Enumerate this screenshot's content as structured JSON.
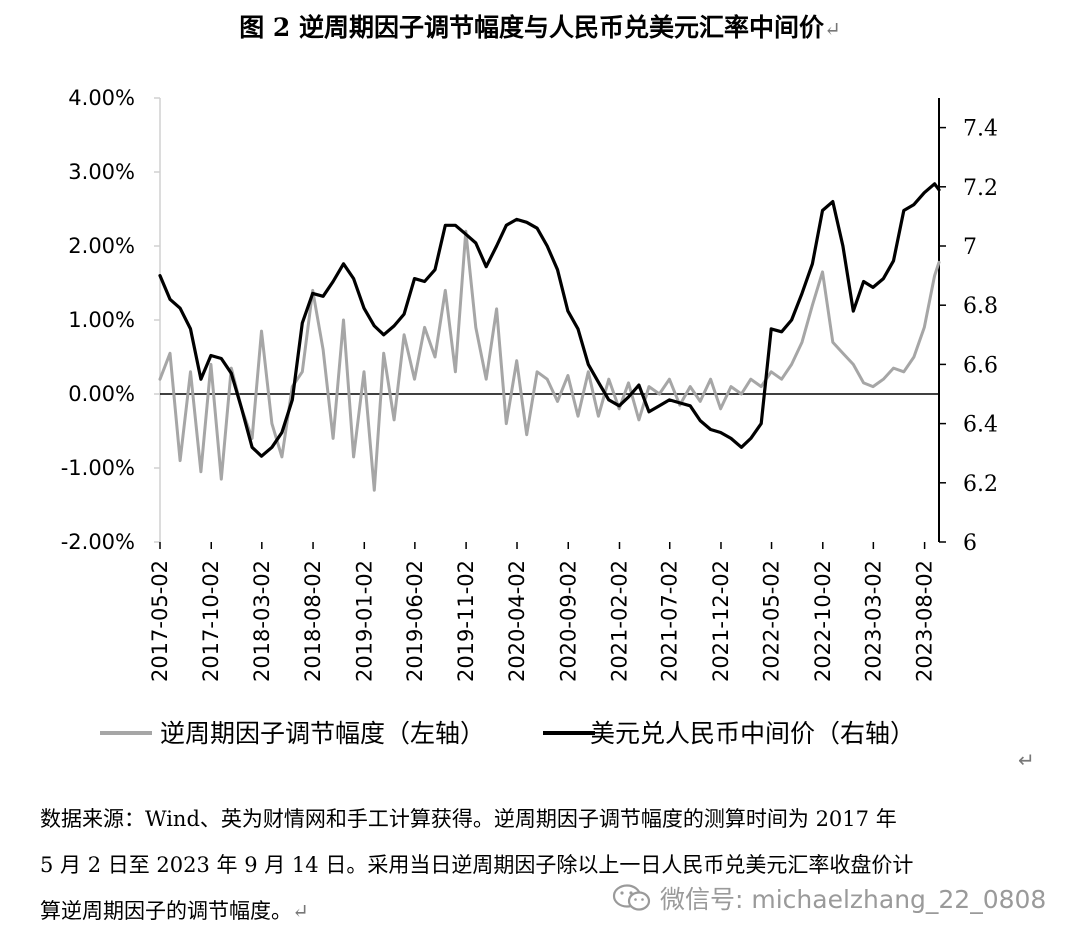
{
  "title": "图 2  逆周期因子调节幅度与人民币兑美元汇率中间价",
  "notes": [
    "数据来源：Wind、英为财情网和手工计算获得。逆周期因子调节幅度的测算时间为 2017 年",
    "5 月 2 日至 2023 年 9 月 14 日。采用当日逆周期因子除以上一日人民币兑美元汇率收盘价计",
    "算逆周期因子的调节幅度。"
  ],
  "watermark": "微信号: michaelzhang_22_0808",
  "chart_data": {
    "type": "line",
    "title": "图 2  逆周期因子调节幅度与人民币兑美元汇率中间价",
    "y_left": {
      "ticks": [
        "4.00%",
        "3.00%",
        "2.00%",
        "1.00%",
        "0.00%",
        "-1.00%",
        "-2.00%"
      ],
      "range": [
        -2.0,
        4.0
      ],
      "unit": "%"
    },
    "y_right": {
      "ticks": [
        "7.4",
        "7.2",
        "7",
        "6.8",
        "6.6",
        "6.4",
        "6.2",
        "6"
      ],
      "range": [
        6.0,
        7.5
      ]
    },
    "x_ticks": [
      "2017-05-02",
      "2017-10-02",
      "2018-03-02",
      "2018-08-02",
      "2019-01-02",
      "2019-06-02",
      "2019-11-02",
      "2020-04-02",
      "2020-09-02",
      "2021-02-02",
      "2021-07-02",
      "2021-12-02",
      "2022-05-02",
      "2022-10-02",
      "2023-03-02",
      "2023-08-02"
    ],
    "x_range": [
      "2017-05-02",
      "2023-09-14"
    ],
    "series": [
      {
        "name": "逆周期因子调节幅度（左轴）",
        "axis": "left",
        "color": "#a6a6a6",
        "x": [
          "2017-05-02",
          "2017-06-01",
          "2017-07-01",
          "2017-08-01",
          "2017-09-01",
          "2017-10-01",
          "2017-11-01",
          "2017-12-01",
          "2018-01-01",
          "2018-02-01",
          "2018-03-01",
          "2018-04-01",
          "2018-05-01",
          "2018-06-01",
          "2018-07-01",
          "2018-08-01",
          "2018-09-01",
          "2018-10-01",
          "2018-11-01",
          "2018-12-01",
          "2019-01-01",
          "2019-02-01",
          "2019-03-01",
          "2019-04-01",
          "2019-05-01",
          "2019-06-01",
          "2019-07-01",
          "2019-08-01",
          "2019-09-01",
          "2019-10-01",
          "2019-11-01",
          "2019-12-01",
          "2020-01-01",
          "2020-02-01",
          "2020-03-01",
          "2020-04-01",
          "2020-05-01",
          "2020-06-01",
          "2020-07-01",
          "2020-08-01",
          "2020-09-01",
          "2020-10-01",
          "2020-11-01",
          "2020-12-01",
          "2021-01-01",
          "2021-02-01",
          "2021-03-01",
          "2021-04-01",
          "2021-05-01",
          "2021-06-01",
          "2021-07-01",
          "2021-08-01",
          "2021-09-01",
          "2021-10-01",
          "2021-11-01",
          "2021-12-01",
          "2022-01-01",
          "2022-02-01",
          "2022-03-01",
          "2022-04-01",
          "2022-05-01",
          "2022-06-01",
          "2022-07-01",
          "2022-08-01",
          "2022-09-01",
          "2022-10-01",
          "2022-11-01",
          "2022-12-01",
          "2023-01-01",
          "2023-02-01",
          "2023-03-01",
          "2023-04-01",
          "2023-05-01",
          "2023-06-01",
          "2023-07-01",
          "2023-08-01",
          "2023-09-01",
          "2023-09-14"
        ],
        "values": [
          0.2,
          0.55,
          -0.9,
          0.3,
          -1.05,
          0.4,
          -1.15,
          0.35,
          -0.2,
          -0.6,
          0.85,
          -0.4,
          -0.85,
          0.1,
          0.3,
          1.4,
          0.6,
          -0.6,
          1.0,
          -0.85,
          0.3,
          -1.3,
          0.55,
          -0.35,
          0.8,
          0.2,
          0.9,
          0.5,
          1.4,
          0.3,
          2.2,
          0.9,
          0.2,
          1.15,
          -0.4,
          0.45,
          -0.55,
          0.3,
          0.2,
          -0.1,
          0.25,
          -0.3,
          0.3,
          -0.3,
          0.2,
          -0.2,
          0.15,
          -0.35,
          0.1,
          0.0,
          0.2,
          -0.15,
          0.1,
          -0.1,
          0.2,
          -0.2,
          0.1,
          0.0,
          0.2,
          0.1,
          0.3,
          0.2,
          0.4,
          0.7,
          1.2,
          1.65,
          0.7,
          0.55,
          0.4,
          0.15,
          0.1,
          0.2,
          0.35,
          0.3,
          0.5,
          0.9,
          1.6,
          1.78
        ]
      },
      {
        "name": "美元兑人民币中间价（右轴）",
        "axis": "right",
        "color": "#000000",
        "x": [
          "2017-05-02",
          "2017-06-01",
          "2017-07-01",
          "2017-08-01",
          "2017-09-01",
          "2017-10-01",
          "2017-11-01",
          "2017-12-01",
          "2018-01-01",
          "2018-02-01",
          "2018-03-01",
          "2018-04-01",
          "2018-05-01",
          "2018-06-01",
          "2018-07-01",
          "2018-08-01",
          "2018-09-01",
          "2018-10-01",
          "2018-11-01",
          "2018-12-01",
          "2019-01-01",
          "2019-02-01",
          "2019-03-01",
          "2019-04-01",
          "2019-05-01",
          "2019-06-01",
          "2019-07-01",
          "2019-08-01",
          "2019-09-01",
          "2019-10-01",
          "2019-11-01",
          "2019-12-01",
          "2020-01-01",
          "2020-02-01",
          "2020-03-01",
          "2020-04-01",
          "2020-05-01",
          "2020-06-01",
          "2020-07-01",
          "2020-08-01",
          "2020-09-01",
          "2020-10-01",
          "2020-11-01",
          "2020-12-01",
          "2021-01-01",
          "2021-02-01",
          "2021-03-01",
          "2021-04-01",
          "2021-05-01",
          "2021-06-01",
          "2021-07-01",
          "2021-08-01",
          "2021-09-01",
          "2021-10-01",
          "2021-11-01",
          "2021-12-01",
          "2022-01-01",
          "2022-02-01",
          "2022-03-01",
          "2022-04-01",
          "2022-05-01",
          "2022-06-01",
          "2022-07-01",
          "2022-08-01",
          "2022-09-01",
          "2022-10-01",
          "2022-11-01",
          "2022-12-01",
          "2023-01-01",
          "2023-02-01",
          "2023-03-01",
          "2023-04-01",
          "2023-05-01",
          "2023-06-01",
          "2023-07-01",
          "2023-08-01",
          "2023-09-01",
          "2023-09-14"
        ],
        "values": [
          6.9,
          6.82,
          6.79,
          6.72,
          6.55,
          6.63,
          6.62,
          6.57,
          6.45,
          6.32,
          6.29,
          6.32,
          6.37,
          6.48,
          6.74,
          6.84,
          6.83,
          6.88,
          6.94,
          6.89,
          6.79,
          6.73,
          6.7,
          6.73,
          6.77,
          6.89,
          6.88,
          6.92,
          7.07,
          7.07,
          7.04,
          7.01,
          6.93,
          7.0,
          7.07,
          7.09,
          7.08,
          7.06,
          7.0,
          6.92,
          6.78,
          6.72,
          6.6,
          6.54,
          6.48,
          6.46,
          6.49,
          6.53,
          6.44,
          6.46,
          6.48,
          6.47,
          6.46,
          6.41,
          6.38,
          6.37,
          6.35,
          6.32,
          6.35,
          6.4,
          6.72,
          6.71,
          6.75,
          6.84,
          6.94,
          7.12,
          7.15,
          7.0,
          6.78,
          6.88,
          6.86,
          6.89,
          6.95,
          7.12,
          7.14,
          7.18,
          7.21,
          7.19
        ]
      }
    ]
  }
}
